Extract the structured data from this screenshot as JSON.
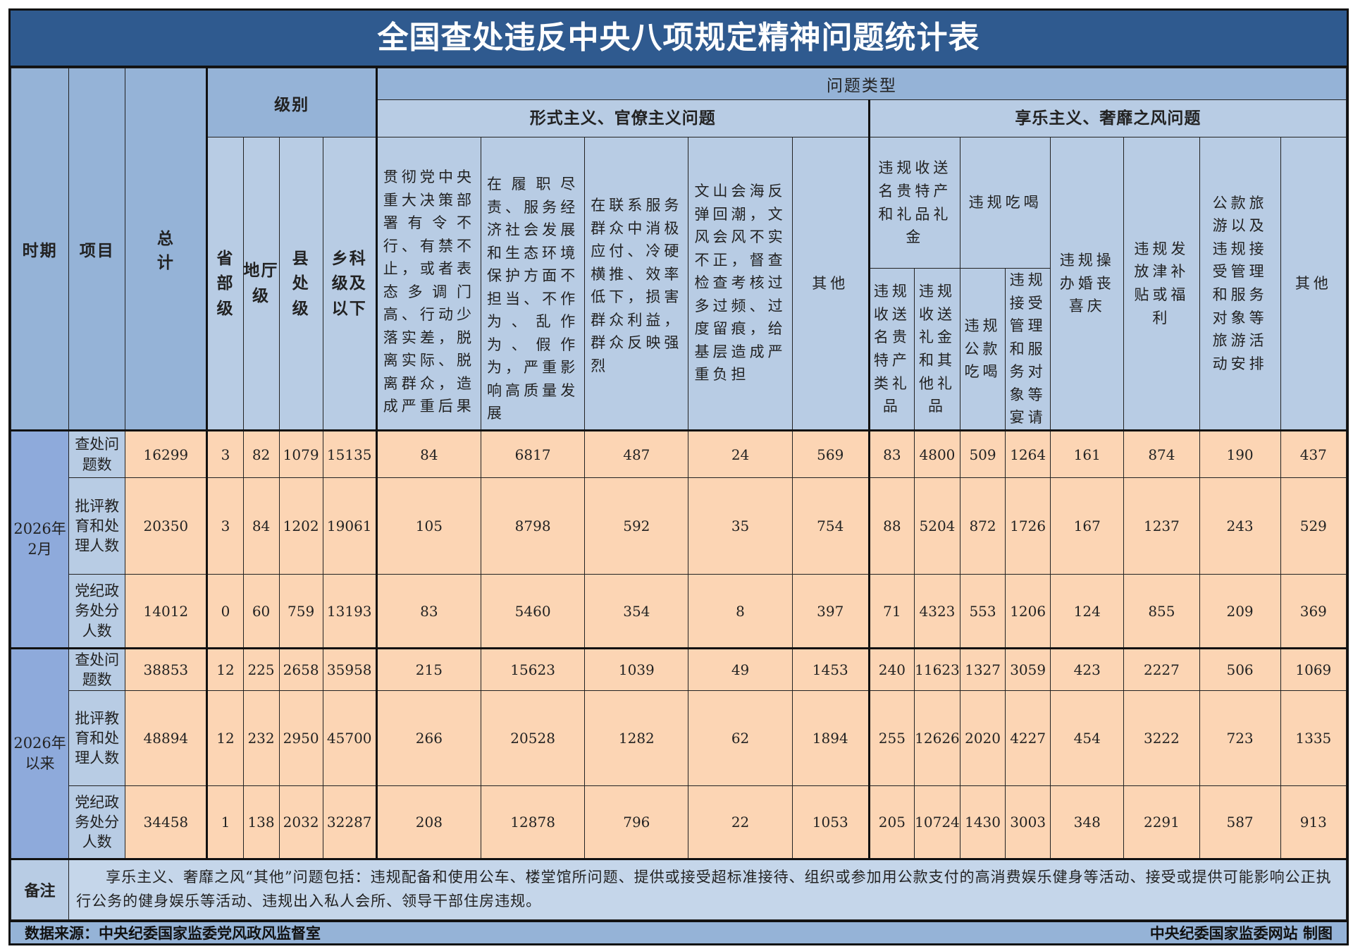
{
  "title": "全国查处违反中央八项规定精神问题统计表",
  "headers": {
    "period": "时期",
    "item": "项目",
    "total": "总计",
    "level": "级别",
    "levels": [
      "省部级",
      "地厅级",
      "县处级",
      "乡科级及以下"
    ],
    "problem_type": "问题类型",
    "formalism": "形式主义、官僚主义问题",
    "hedonism": "享乐主义、奢靡之风问题",
    "formalism_cols": [
      "贯彻党中央重大决策部署有令不行、有禁不止，或者表态多调门高、行动少落实差，脱离实际、脱离群众，造成严重后果",
      "在履职尽责、服务经济社会发展和生态环境保护方面不担当、不作为、乱作为、假作为，严重影响高质量发展",
      "在联系服务群众中消极应付、冷硬横推、效率低下，损害群众利益，群众反映强烈",
      "文山会海反弹回潮，文风会风不实不正，督查检查考核过多过频、过度留痕，给基层造成严重负担",
      "其他"
    ],
    "gifts_group": "违规收送名贵特产和礼品礼金",
    "gifts_cols": [
      "违规收送名贵特产类礼品",
      "违规收送礼金和其他礼品"
    ],
    "dining_group": "违规吃喝",
    "dining_cols": [
      "违规公款吃喝",
      "违规接受管理和服务对象等宴请"
    ],
    "hedonism_cols": [
      "违规操办婚丧喜庆",
      "违规发放津补贴或福利",
      "公款旅游以及违规接受管理和服务对象等旅游活动安排",
      "其他"
    ]
  },
  "periods": [
    {
      "label": "2026年2月",
      "rows": [
        {
          "item": "查处问题数",
          "values": [
            "16299",
            "3",
            "82",
            "1079",
            "15135",
            "84",
            "6817",
            "487",
            "24",
            "569",
            "83",
            "4800",
            "509",
            "1264",
            "161",
            "874",
            "190",
            "437"
          ]
        },
        {
          "item": "批评教育和处理人数",
          "values": [
            "20350",
            "3",
            "84",
            "1202",
            "19061",
            "105",
            "8798",
            "592",
            "35",
            "754",
            "88",
            "5204",
            "872",
            "1726",
            "167",
            "1237",
            "243",
            "529"
          ]
        },
        {
          "item": "党纪政务处分人数",
          "values": [
            "14012",
            "0",
            "60",
            "759",
            "13193",
            "83",
            "5460",
            "354",
            "8",
            "397",
            "71",
            "4323",
            "553",
            "1206",
            "124",
            "855",
            "209",
            "369"
          ]
        }
      ]
    },
    {
      "label": "2026年以来",
      "rows": [
        {
          "item": "查处问题数",
          "values": [
            "38853",
            "12",
            "225",
            "2658",
            "35958",
            "215",
            "15623",
            "1039",
            "49",
            "1453",
            "240",
            "11623",
            "1327",
            "3059",
            "423",
            "2227",
            "506",
            "1069"
          ]
        },
        {
          "item": "批评教育和处理人数",
          "values": [
            "48894",
            "12",
            "232",
            "2950",
            "45700",
            "266",
            "20528",
            "1282",
            "62",
            "1894",
            "255",
            "12626",
            "2020",
            "4227",
            "454",
            "3222",
            "723",
            "1335"
          ]
        },
        {
          "item": "党纪政务处分人数",
          "values": [
            "34458",
            "1",
            "138",
            "2032",
            "32287",
            "208",
            "12878",
            "796",
            "22",
            "1053",
            "205",
            "10724",
            "1430",
            "3003",
            "348",
            "2291",
            "587",
            "913"
          ]
        }
      ]
    }
  ],
  "note_label": "备注",
  "note": "享乐主义、奢靡之风“其他”问题包括：违规配备和使用公车、楼堂馆所问题、提供或接受超标准接待、组织或参加用公款支付的高消费娱乐健身等活动、接受或提供可能影响公正执行公务的健身娱乐等活动、违规出入私人会所、领导干部住房违规。",
  "source": "数据来源：中央纪委国家监委党风政风监督室",
  "credit": "中央纪委国家监委网站 制图",
  "colors": {
    "title_bg": "#2f5a8f",
    "header_bg": "#b8cce4",
    "data_bg": "#fcd5b4",
    "footer_bg": "#95b3d7"
  }
}
